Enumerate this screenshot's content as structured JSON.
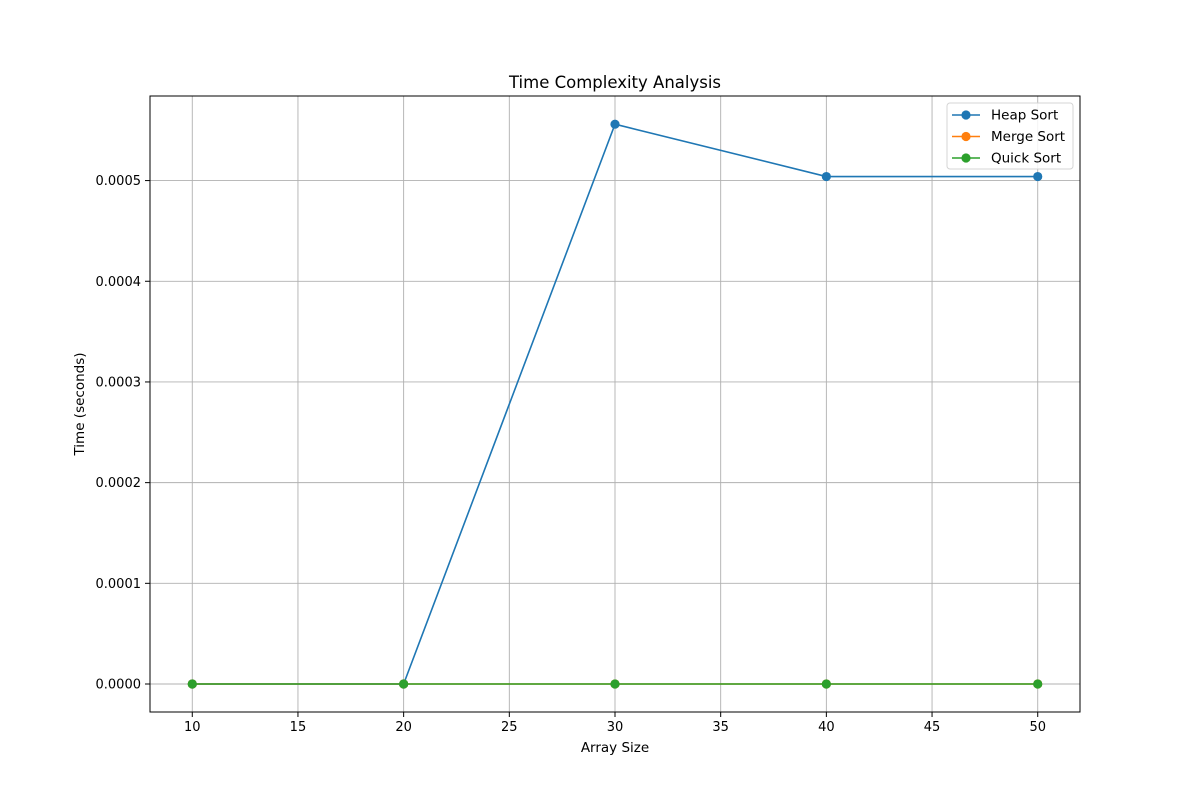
{
  "chart_data": {
    "type": "line",
    "title": "Time Complexity Analysis",
    "xlabel": "Array Size",
    "ylabel": "Time (seconds)",
    "x": [
      10,
      20,
      30,
      40,
      50
    ],
    "xlim": [
      8,
      52
    ],
    "ylim": [
      -2.78e-05,
      0.000584
    ],
    "xticks": [
      10,
      15,
      20,
      25,
      30,
      35,
      40,
      45,
      50
    ],
    "yticks": [
      0,
      0.0001,
      0.0002,
      0.0003,
      0.0004,
      0.0005
    ],
    "ytick_labels": [
      "0.0000",
      "0.0001",
      "0.0002",
      "0.0003",
      "0.0004",
      "0.0005"
    ],
    "grid": true,
    "legend_position": "top-right",
    "series": [
      {
        "name": "Heap Sort",
        "color": "#1f77b4",
        "values": [
          0,
          0,
          0.000556,
          0.000504,
          0.000504
        ]
      },
      {
        "name": "Merge Sort",
        "color": "#ff7f0e",
        "values": [
          0,
          0,
          0,
          0,
          0
        ]
      },
      {
        "name": "Quick Sort",
        "color": "#2ca02c",
        "values": [
          0,
          0,
          0,
          0,
          0
        ]
      }
    ]
  }
}
